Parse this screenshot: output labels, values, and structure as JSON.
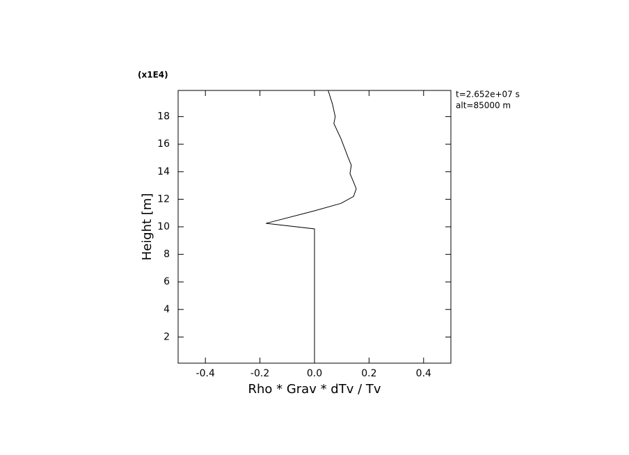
{
  "chart_data": {
    "type": "line",
    "multiplier_label": "(x1E4)",
    "annotations": [
      "t=2.652e+07 s",
      "alt=85000 m"
    ],
    "xlabel": "Rho * Grav * dTv / Tv",
    "ylabel": "Height [m]",
    "xlim": [
      -0.5,
      0.5
    ],
    "ylim": [
      0.1,
      19.9
    ],
    "xticks": [
      -0.4,
      -0.2,
      {
        "value": 0,
        "label": "0.0"
      },
      0.2,
      0.4
    ],
    "yticks": [
      2,
      4,
      6,
      8,
      10,
      12,
      14,
      16,
      18
    ],
    "color": "#000000",
    "y": [
      0.1,
      9.85,
      10.25,
      11.16,
      11.7,
      12.2,
      12.76,
      13.26,
      13.87,
      14.47,
      15.1,
      16.4,
      17.5,
      18.0,
      18.9,
      19.9
    ],
    "values": [
      0.0,
      0.0,
      -0.178,
      0.0,
      0.097,
      0.143,
      0.153,
      0.143,
      0.13,
      0.135,
      0.122,
      0.097,
      0.071,
      0.076,
      0.066,
      0.05
    ]
  }
}
